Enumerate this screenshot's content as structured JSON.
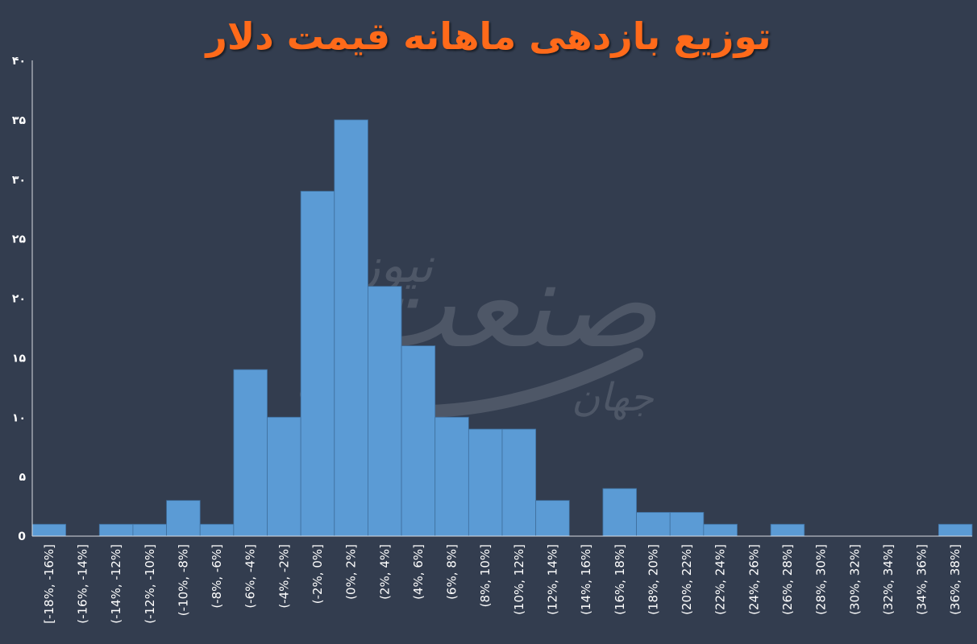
{
  "chart_data": {
    "type": "bar",
    "title": "توزیع بازدهی ماهانه قیمت دلار",
    "xlabel": "",
    "ylabel": "",
    "ylim": [
      0,
      40
    ],
    "yticks": [
      "0",
      "۵",
      "۱۰",
      "۱۵",
      "۲۰",
      "۲۵",
      "۳۰",
      "۳۵",
      "۴۰"
    ],
    "grid": false,
    "bar_color": "#5b9bd5",
    "categories": [
      "[-18%, -16%]",
      "(-16%, -14%]",
      "(-14%, -12%]",
      "(-12%, -10%]",
      "(-10%, -8%]",
      "(-8%, -6%]",
      "(-6%, -4%]",
      "(-4%, -2%]",
      "(-2%, 0%]",
      "(0%, 2%]",
      "(2%, 4%]",
      "(4%, 6%]",
      "(6%, 8%]",
      "(8%, 10%]",
      "(10%, 12%]",
      "(12%, 14%]",
      "(14%, 16%]",
      "(16%, 18%]",
      "(18%, 20%]",
      "(20%, 22%]",
      "(22%, 24%]",
      "(24%, 26%]",
      "(26%, 28%]",
      "(28%, 30%]",
      "(30%, 32%]",
      "(32%, 34%]",
      "(34%, 36%]",
      "(36%, 38%]"
    ],
    "values": [
      1,
      0,
      1,
      1,
      3,
      1,
      14,
      10,
      29,
      35,
      21,
      16,
      10,
      9,
      9,
      3,
      0,
      4,
      2,
      2,
      1,
      0,
      1,
      0,
      0,
      0,
      0,
      1
    ]
  },
  "watermark": {
    "text_main": "صنعت",
    "text_sub": "نیوز",
    "text_small": "جهان",
    "color": "#c8cdd6"
  }
}
